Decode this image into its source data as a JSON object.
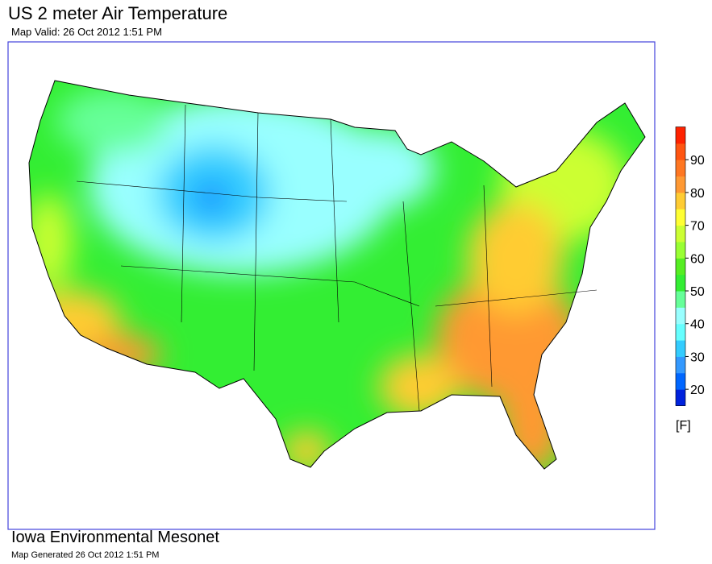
{
  "header": {
    "title": "US 2 meter Air Temperature",
    "subtitle": "Map Valid: 26 Oct 2012 1:51 PM"
  },
  "legend": {
    "range": [
      15,
      100
    ],
    "ticks": [
      20,
      30,
      40,
      50,
      60,
      70,
      80,
      90
    ],
    "unit": "[F]",
    "colors": [
      "#0022dd",
      "#0066ff",
      "#3399ff",
      "#33ccff",
      "#66ffff",
      "#99ffff",
      "#66ff99",
      "#33ee33",
      "#55ee22",
      "#99ff33",
      "#ccff33",
      "#ffff33",
      "#ffcc33",
      "#ff9933",
      "#ff7722",
      "#ff5511",
      "#ff2200"
    ]
  },
  "footer": {
    "source": "Iowa Environmental Mesonet",
    "generated": "Map Generated 26 Oct 2012 1:51 PM"
  }
}
